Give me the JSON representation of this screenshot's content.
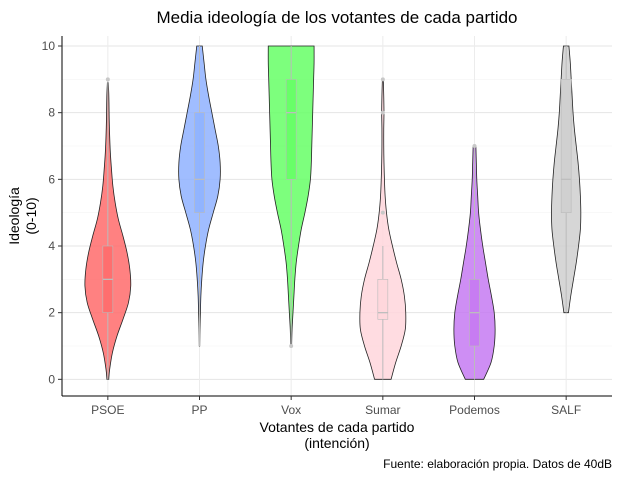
{
  "chart_data": {
    "type": "violin",
    "title": "Media ideología de los votantes de cada partido",
    "xlabel_line1": "Votantes de cada partido",
    "xlabel_line2": "(intención)",
    "ylabel_line1": "Ideología",
    "ylabel_line2": "(0-10)",
    "caption": "Fuente: elaboración propia. Datos de 40dB",
    "ylim": [
      -0.5,
      10.3
    ],
    "yticks": [
      "0",
      "2",
      "4",
      "6",
      "8",
      "10"
    ],
    "grid": "horizontal major",
    "legend": "none",
    "categories": [
      "PSOE",
      "PP",
      "Vox",
      "Sumar",
      "Podemos",
      "SALF"
    ],
    "series": [
      {
        "category": "PSOE",
        "color": "#ff6b6b",
        "box": {
          "q1": 2,
          "median": 3,
          "q3": 4,
          "whisker_low": 0,
          "whisker_high": 9
        },
        "outliers": [
          9
        ],
        "density": [
          [
            0,
            0.02
          ],
          [
            0.3,
            0.04
          ],
          [
            0.8,
            0.1
          ],
          [
            1.3,
            0.2
          ],
          [
            1.8,
            0.33
          ],
          [
            2.3,
            0.45
          ],
          [
            2.8,
            0.5
          ],
          [
            3.3,
            0.48
          ],
          [
            3.8,
            0.42
          ],
          [
            4.3,
            0.33
          ],
          [
            4.8,
            0.23
          ],
          [
            5.3,
            0.16
          ],
          [
            5.8,
            0.11
          ],
          [
            6.3,
            0.08
          ],
          [
            6.8,
            0.055
          ],
          [
            7.3,
            0.04
          ],
          [
            7.8,
            0.03
          ],
          [
            8.3,
            0.025
          ],
          [
            8.6,
            0.02
          ],
          [
            8.9,
            0.01
          ]
        ]
      },
      {
        "category": "PP",
        "color": "#8fb2ff",
        "box": {
          "q1": 5,
          "median": 6,
          "q3": 8,
          "whisker_low": 1,
          "whisker_high": 10
        },
        "outliers": [],
        "density": [
          [
            1,
            0.005
          ],
          [
            1.5,
            0.01
          ],
          [
            2,
            0.02
          ],
          [
            2.5,
            0.03
          ],
          [
            3,
            0.05
          ],
          [
            3.5,
            0.08
          ],
          [
            4,
            0.13
          ],
          [
            4.5,
            0.2
          ],
          [
            5,
            0.3
          ],
          [
            5.5,
            0.4
          ],
          [
            6,
            0.45
          ],
          [
            6.5,
            0.45
          ],
          [
            7,
            0.41
          ],
          [
            7.5,
            0.34
          ],
          [
            8,
            0.27
          ],
          [
            8.5,
            0.2
          ],
          [
            9,
            0.14
          ],
          [
            9.5,
            0.1
          ],
          [
            10,
            0.06
          ]
        ]
      },
      {
        "category": "Vox",
        "color": "#66ff66",
        "box": {
          "q1": 6,
          "median": 8,
          "q3": 9,
          "whisker_low": 1,
          "whisker_high": 10
        },
        "outliers": [
          1
        ],
        "density": [
          [
            1,
            0.01
          ],
          [
            1.5,
            0.02
          ],
          [
            2,
            0.04
          ],
          [
            2.5,
            0.06
          ],
          [
            3,
            0.08
          ],
          [
            3.5,
            0.11
          ],
          [
            4,
            0.16
          ],
          [
            4.5,
            0.22
          ],
          [
            5,
            0.3
          ],
          [
            5.5,
            0.37
          ],
          [
            6,
            0.42
          ],
          [
            6.5,
            0.44
          ],
          [
            7,
            0.45
          ],
          [
            7.5,
            0.46
          ],
          [
            8,
            0.47
          ],
          [
            8.5,
            0.48
          ],
          [
            9,
            0.49
          ],
          [
            9.5,
            0.5
          ],
          [
            10,
            0.5
          ]
        ]
      },
      {
        "category": "Sumar",
        "color": "#ffd6dc",
        "box": {
          "q1": 1.8,
          "median": 2,
          "q3": 3,
          "whisker_low": 0,
          "whisker_high": 4
        },
        "outliers": [
          5,
          8,
          9
        ],
        "density": [
          [
            0,
            0.18
          ],
          [
            0.5,
            0.28
          ],
          [
            1,
            0.4
          ],
          [
            1.5,
            0.49
          ],
          [
            2,
            0.5
          ],
          [
            2.5,
            0.47
          ],
          [
            3,
            0.4
          ],
          [
            3.5,
            0.3
          ],
          [
            4,
            0.21
          ],
          [
            4.5,
            0.13
          ],
          [
            5,
            0.08
          ],
          [
            5.5,
            0.05
          ],
          [
            6,
            0.035
          ],
          [
            6.5,
            0.025
          ],
          [
            7,
            0.02
          ],
          [
            7.5,
            0.02
          ],
          [
            8,
            0.025
          ],
          [
            8.5,
            0.02
          ],
          [
            9,
            0.01
          ]
        ]
      },
      {
        "category": "Podemos",
        "color": "#c67af2",
        "box": {
          "q1": 1,
          "median": 2,
          "q3": 3,
          "whisker_low": 0,
          "whisker_high": 7
        },
        "outliers": [
          7
        ],
        "density": [
          [
            0,
            0.2
          ],
          [
            0.5,
            0.36
          ],
          [
            1,
            0.43
          ],
          [
            1.5,
            0.45
          ],
          [
            2,
            0.43
          ],
          [
            2.5,
            0.37
          ],
          [
            3,
            0.3
          ],
          [
            3.5,
            0.24
          ],
          [
            4,
            0.18
          ],
          [
            4.5,
            0.13
          ],
          [
            5,
            0.09
          ],
          [
            5.5,
            0.07
          ],
          [
            6,
            0.05
          ],
          [
            6.5,
            0.04
          ],
          [
            7,
            0.03
          ]
        ]
      },
      {
        "category": "SALF",
        "color": "#cfcfcf",
        "box": {
          "q1": 5,
          "median": 6,
          "q3": 9,
          "whisker_low": 2,
          "whisker_high": 10
        },
        "outliers": [],
        "density": [
          [
            2,
            0.05
          ],
          [
            2.5,
            0.1
          ],
          [
            3,
            0.16
          ],
          [
            3.5,
            0.22
          ],
          [
            4,
            0.27
          ],
          [
            4.5,
            0.31
          ],
          [
            5,
            0.32
          ],
          [
            5.5,
            0.31
          ],
          [
            6,
            0.29
          ],
          [
            6.5,
            0.26
          ],
          [
            7,
            0.22
          ],
          [
            7.5,
            0.18
          ],
          [
            8,
            0.15
          ],
          [
            8.5,
            0.13
          ],
          [
            9,
            0.11
          ],
          [
            9.5,
            0.09
          ],
          [
            10,
            0.06
          ]
        ]
      }
    ]
  }
}
